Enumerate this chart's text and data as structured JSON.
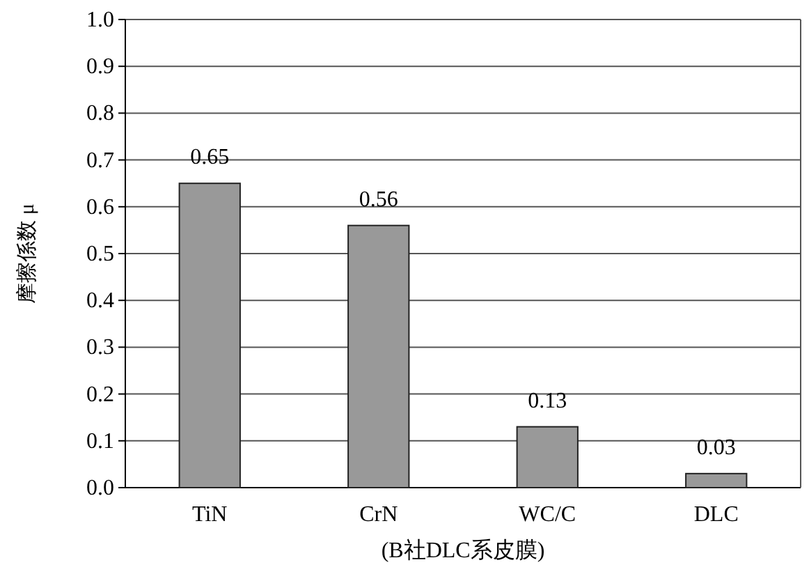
{
  "chart_data": {
    "type": "bar",
    "ylabel": "摩擦係数 μ",
    "xlabel": "(B社DLC系皮膜)",
    "categories": [
      "TiN",
      "CrN",
      "WC/C",
      "DLC"
    ],
    "values": [
      0.65,
      0.56,
      0.13,
      0.03
    ],
    "color": "#999999",
    "data_labels": true,
    "grid": "y",
    "ylim": [
      0,
      1
    ],
    "yticks": [
      {
        "value": 0,
        "label": "0.0"
      },
      {
        "value": 0.1,
        "label": "0.1"
      },
      {
        "value": 0.2,
        "label": "0.2"
      },
      {
        "value": 0.3,
        "label": "0.3"
      },
      {
        "value": 0.4,
        "label": "0.4"
      },
      {
        "value": 0.5,
        "label": "0.5"
      },
      {
        "value": 0.6,
        "label": "0.6"
      },
      {
        "value": 0.7,
        "label": "0.7"
      },
      {
        "value": 0.8,
        "label": "0.8"
      },
      {
        "value": 0.9,
        "label": "0.9"
      },
      {
        "value": 1,
        "label": "1.0"
      }
    ]
  }
}
